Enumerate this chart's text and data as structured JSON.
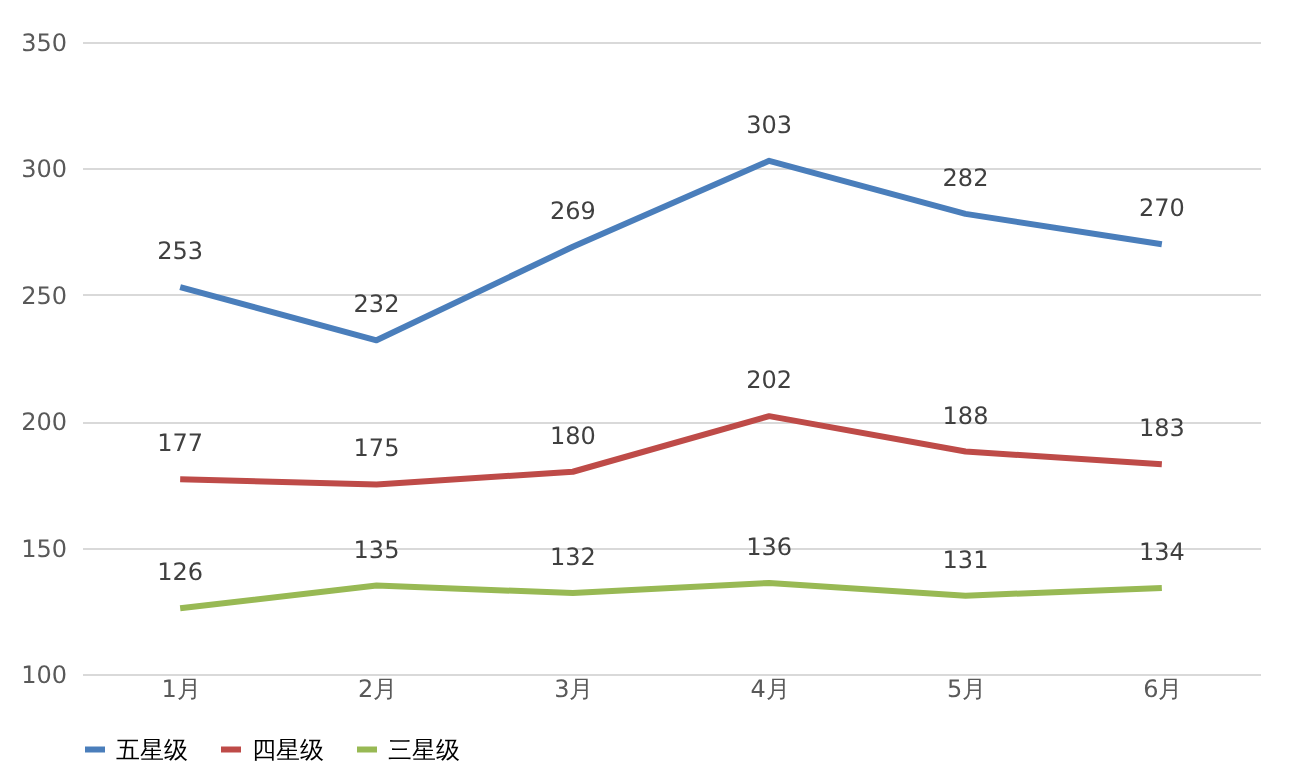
{
  "chart_data": {
    "type": "line",
    "categories": [
      "1月",
      "2月",
      "3月",
      "4月",
      "5月",
      "6月"
    ],
    "series": [
      {
        "name": "五星级",
        "color": "#4a7ebb",
        "values": [
          253,
          232,
          269,
          303,
          282,
          270
        ]
      },
      {
        "name": "四星级",
        "color": "#be4b48",
        "values": [
          177,
          175,
          180,
          202,
          188,
          183
        ]
      },
      {
        "name": "三星级",
        "color": "#98b954",
        "values": [
          126,
          135,
          132,
          136,
          131,
          134
        ]
      }
    ],
    "ylim": [
      100,
      350
    ],
    "yticks": [
      100,
      150,
      200,
      250,
      300,
      350
    ],
    "grid": "y",
    "legend": "bottom",
    "data_labels": true,
    "marker": "none",
    "line_style": "solid"
  }
}
